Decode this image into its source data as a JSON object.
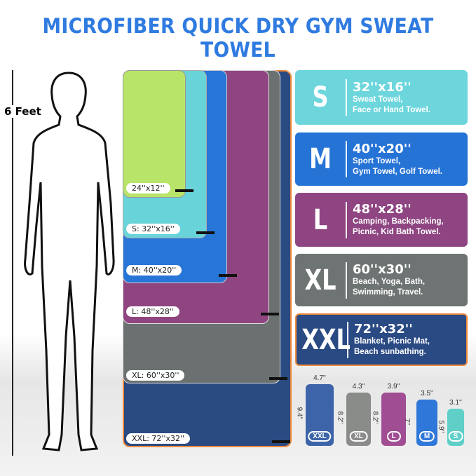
{
  "title": "MICROFIBER QUICK DRY GYM SWEAT TOWEL",
  "height_label": "6 Feet",
  "towels": [
    {
      "label": "XXL: 72''x32''",
      "color": "#2a4a82"
    },
    {
      "label": "XL: 60''x30''",
      "color": "#6b7170"
    },
    {
      "label": "L: 48''x28''",
      "color": "#8e4580"
    },
    {
      "label": "M: 40''x20''",
      "color": "#2775d6"
    },
    {
      "label": "S: 32''x16''",
      "color": "#68d3d8"
    },
    {
      "label": "24''x12''",
      "color": "#b8e46a"
    }
  ],
  "cards": [
    {
      "size": "S",
      "dim": "32''x16''",
      "use1": "Sweat Towel,",
      "use2": "Face or Hand Towel.",
      "color": "#6cd6dc"
    },
    {
      "size": "M",
      "dim": "40''x20''",
      "use1": "Sport Towel,",
      "use2": "Gym Towel, Golf Towel.",
      "color": "#2673d6"
    },
    {
      "size": "L",
      "dim": "48''x28''",
      "use1": "Camping, Backpacking,",
      "use2": "Picnic, Kid Bath Towel.",
      "color": "#8e4582"
    },
    {
      "size": "XL",
      "dim": "60''x30''",
      "use1": "Beach, Yoga, Bath,",
      "use2": "Swimming, Travel.",
      "color": "#6e7473"
    },
    {
      "size": "XXL",
      "dim": "72''x32''",
      "use1": "Blanket, Picnic Mat,",
      "use2": "Beach sunbathing.",
      "color": "#2a4a84"
    }
  ],
  "rolls": [
    {
      "badge": "XXL",
      "width": "4.7''",
      "height": "9.4''",
      "color": "#3d64a8"
    },
    {
      "badge": "XL",
      "width": "4.3''",
      "height": "8.2''",
      "color": "#8a8c8a"
    },
    {
      "badge": "L",
      "width": "3.9''",
      "height": "8.2''",
      "color": "#a04d93"
    },
    {
      "badge": "M",
      "width": "3.5''",
      "height": "7''",
      "color": "#2f77d8"
    },
    {
      "badge": "S",
      "width": "3.1''",
      "height": "5.9''",
      "color": "#5fcfc8"
    }
  ]
}
